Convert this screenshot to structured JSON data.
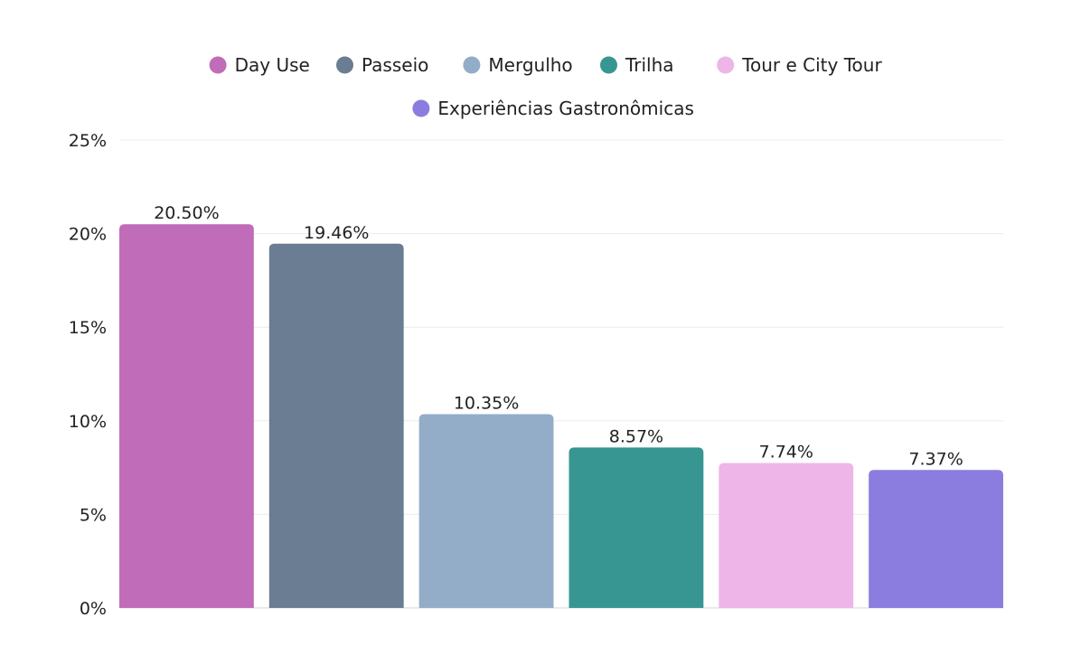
{
  "chart_data": {
    "type": "bar",
    "title": "",
    "xlabel": "",
    "ylabel": "",
    "categories": [
      "Day Use",
      "Passeio",
      "Mergulho",
      "Trilha",
      "Tour e City Tour",
      "Experiências Gastronômicas"
    ],
    "values": [
      20.5,
      19.46,
      10.35,
      8.57,
      7.74,
      7.37
    ],
    "value_labels": [
      "20.50%",
      "19.46%",
      "10.35%",
      "8.57%",
      "7.74%",
      "7.37%"
    ],
    "colors": [
      "#c06cb9",
      "#6a7d92",
      "#93adc8",
      "#379692",
      "#eeb5e8",
      "#8b7ddf"
    ],
    "ylim": [
      0,
      25
    ],
    "yticks": [
      0,
      5,
      10,
      15,
      20,
      25
    ],
    "ytick_labels": [
      "0%",
      "5%",
      "10%",
      "15%",
      "20%",
      "25%"
    ],
    "grid": true,
    "legend": {
      "placement": "top-center",
      "entries": [
        "Day Use",
        "Passeio",
        "Mergulho",
        "Trilha",
        "Tour e City Tour",
        "Experiências Gastronômicas"
      ]
    }
  }
}
